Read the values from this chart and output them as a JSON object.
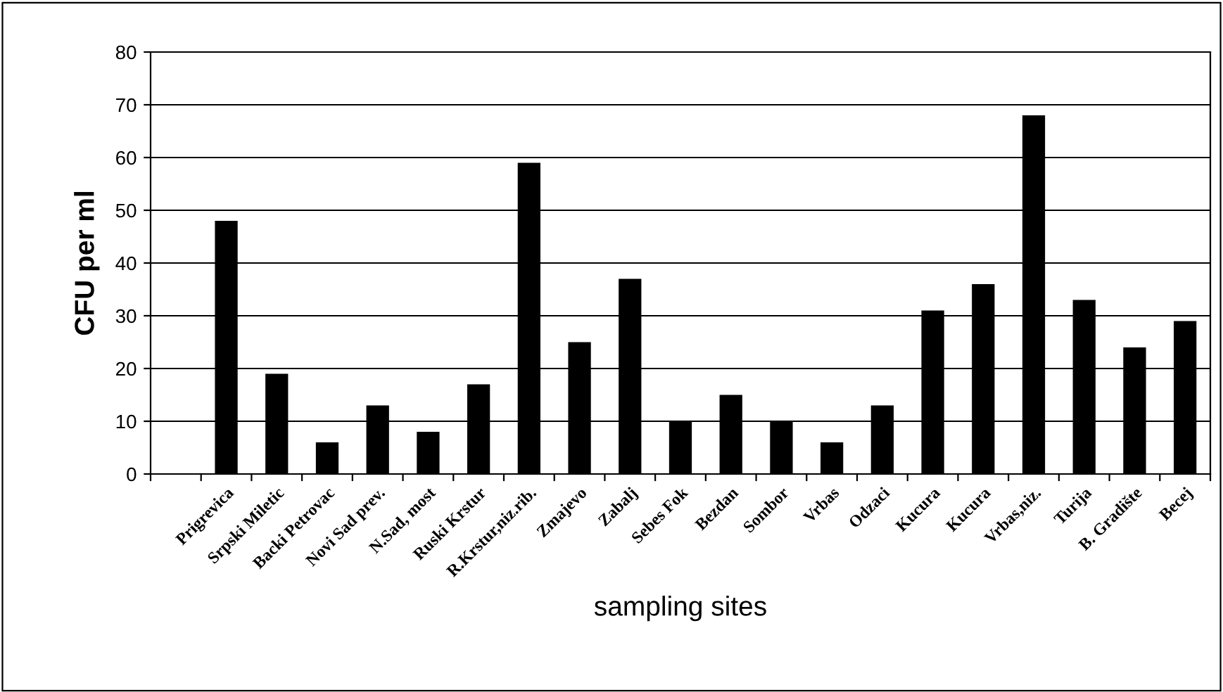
{
  "chart_data": {
    "type": "bar",
    "xlabel": "sampling sites",
    "ylabel": "CFU per ml",
    "categories": [
      null,
      "Prigrevica",
      "Srpski Miletic",
      "Backi Petrovac",
      "Novi Sad prev.",
      "N.Sad, most",
      "Ruski Krstur",
      "R.Krstur,niz.rib.",
      "Zmajevo",
      "Zabalj",
      "Sebes Fok",
      "Bezdan",
      "Sombor",
      "Vrbas",
      "Odzaci",
      "Kucura",
      "Kucura",
      "Vrbas,niz.",
      "Turija",
      "B. Gradište",
      "Becej"
    ],
    "values": [
      null,
      48,
      19,
      6,
      13,
      8,
      17,
      59,
      25,
      37,
      10,
      15,
      10,
      6,
      13,
      31,
      36,
      68,
      33,
      24,
      29
    ],
    "color": "#000000",
    "ylim": [
      0,
      80
    ],
    "yticks": [
      0,
      10,
      20,
      30,
      40,
      50,
      60,
      70,
      80
    ],
    "grid": "y"
  }
}
